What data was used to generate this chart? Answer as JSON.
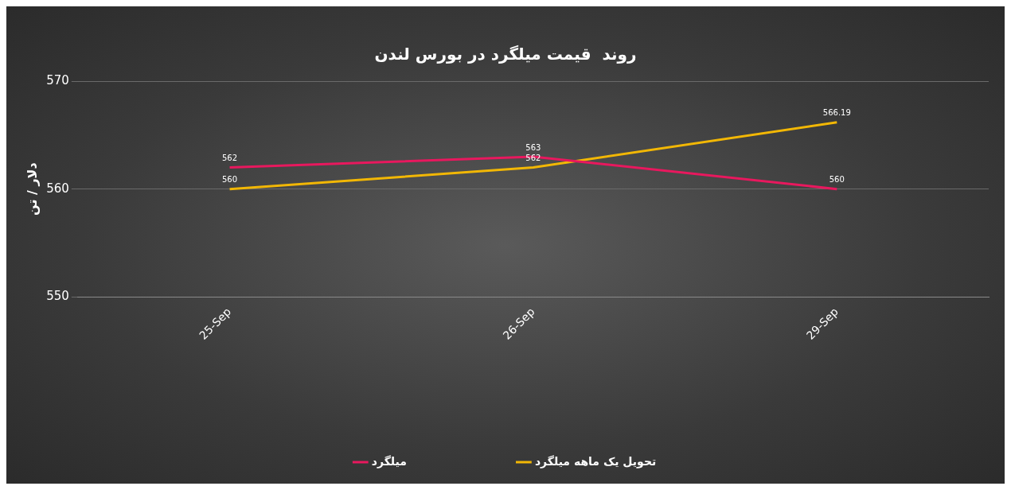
{
  "chart_data": {
    "type": "line",
    "title": "روند  قیمت میلگرد در بورس لندن",
    "ylabel": "دلار / تن",
    "categories": [
      "25-Sep",
      "26-Sep",
      "29-Sep"
    ],
    "series": [
      {
        "name": "میلگرد",
        "color": "#e8185e",
        "values": [
          562,
          563,
          560
        ]
      },
      {
        "name": "تحویل یک ماهه میلگرد",
        "color": "#f2b705",
        "values": [
          560,
          562,
          566.19
        ]
      }
    ],
    "ylim": [
      550,
      570
    ],
    "yticks": [
      550,
      560,
      570
    ],
    "grid": "y",
    "legend": "bottom",
    "marker": "none",
    "line_style": "solid",
    "data_labels": true
  }
}
